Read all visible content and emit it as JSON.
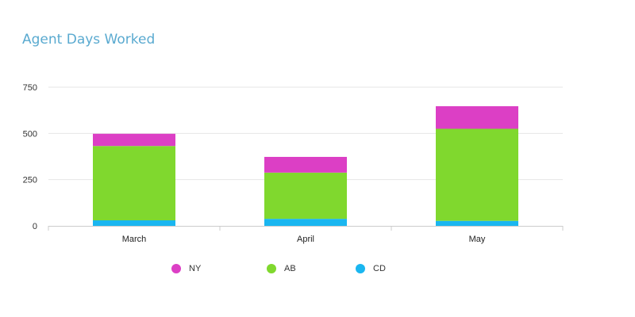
{
  "chart_data": {
    "type": "bar",
    "stacked": true,
    "title": "Agent Days Worked",
    "categories": [
      "March",
      "April",
      "May"
    ],
    "series": [
      {
        "name": "CD",
        "color": "#1ab6f0",
        "values": [
          30,
          38,
          27
        ]
      },
      {
        "name": "AB",
        "color": "#80d82e",
        "values": [
          402,
          250,
          498
        ]
      },
      {
        "name": "NY",
        "color": "#dc3fc5",
        "values": [
          66,
          85,
          122
        ]
      }
    ],
    "yticks": [
      0,
      250,
      500,
      750
    ],
    "ylim": [
      0,
      750
    ],
    "grid": true,
    "legend_position": "bottom",
    "legend_order": [
      "NY",
      "AB",
      "CD"
    ]
  }
}
